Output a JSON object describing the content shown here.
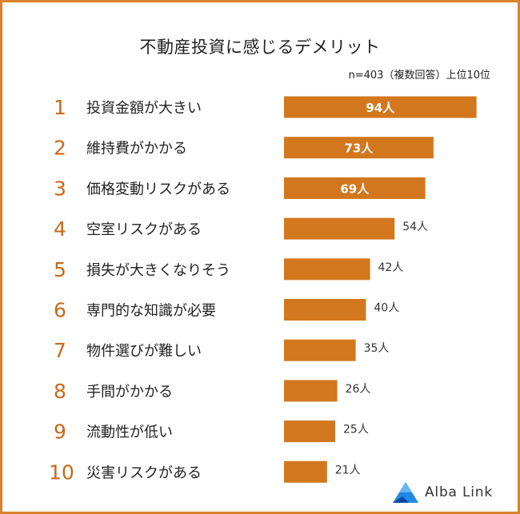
{
  "title": "不動産投資に感じるデメリット",
  "note": "n=403（複数回答）上位10位",
  "logo_text": "Alba Link",
  "colors": {
    "bar": "#d2771e",
    "rank": "#c8691a",
    "frame": "#d9822b",
    "label_inside": "#ffffff",
    "label_outside": "#333333"
  },
  "chart_data": {
    "type": "bar",
    "orientation": "horizontal",
    "ranks": [
      "1",
      "2",
      "3",
      "4",
      "5",
      "6",
      "7",
      "8",
      "9",
      "10"
    ],
    "categories": [
      "投資金額が大きい",
      "維持費がかかる",
      "価格変動リスクがある",
      "空室リスクがある",
      "損失が大きくなりそう",
      "専門的な知識が必要",
      "物件選びが難しい",
      "手間がかかる",
      "流動性が低い",
      "災害リスクがある"
    ],
    "values": [
      94,
      73,
      69,
      54,
      42,
      40,
      35,
      26,
      25,
      21
    ],
    "value_labels": [
      "94人",
      "73人",
      "69人",
      "54人",
      "42人",
      "40人",
      "35人",
      "26人",
      "25人",
      "21人"
    ],
    "unit": "人"
  }
}
